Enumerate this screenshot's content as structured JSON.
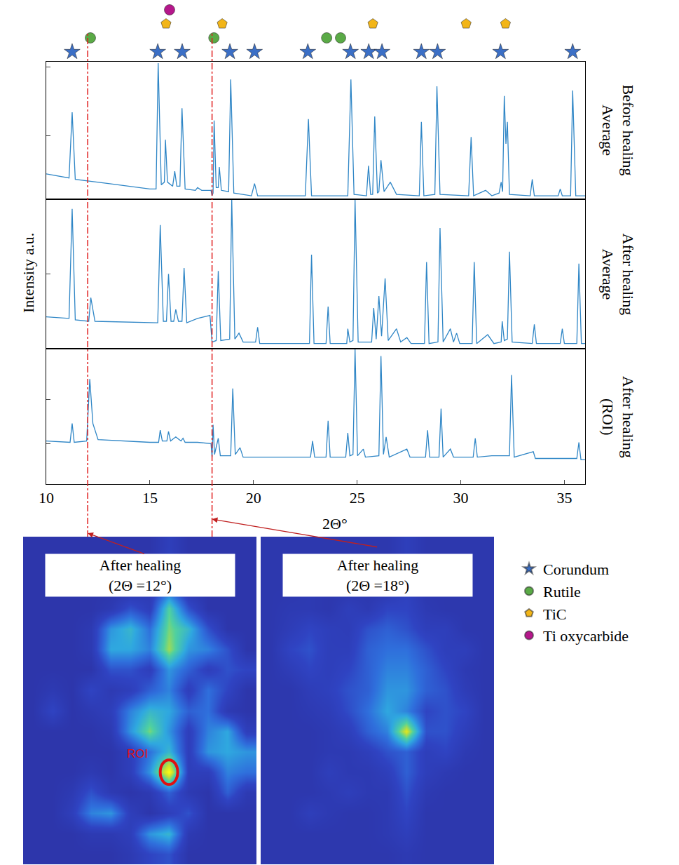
{
  "chart_data": [
    {
      "type": "line",
      "title": "Before healing Average",
      "tick_labels": false,
      "grid": false,
      "color": "#2f86c6",
      "xlim": [
        10,
        36
      ],
      "xticks": [
        10,
        15,
        20,
        25,
        30,
        35
      ],
      "ylim": [
        0,
        100
      ],
      "yticks": [
        46,
        96
      ],
      "x": [
        10,
        11.1,
        11.25,
        11.4,
        13,
        15,
        15.3,
        15.4,
        15.55,
        15.7,
        15.75,
        15.85,
        16.1,
        16.2,
        16.3,
        16.45,
        16.55,
        16.7,
        17.2,
        17.3,
        17.5,
        17.95,
        18.0,
        18.05,
        18.1,
        18.2,
        18.3,
        18.35,
        18.45,
        18.8,
        18.9,
        19.05,
        19.9,
        20.05,
        20.2,
        22.5,
        22.65,
        22.8,
        24.55,
        24.7,
        24.85,
        25.45,
        25.55,
        25.65,
        25.75,
        25.85,
        25.98,
        26.05,
        26.15,
        26.3,
        26.6,
        26.9,
        28.0,
        28.1,
        28.22,
        28.75,
        28.85,
        29.0,
        30.38,
        30.5,
        30.62,
        31.2,
        31.5,
        31.85,
        31.95,
        32.02,
        32.1,
        32.18,
        32.25,
        32.35,
        33.35,
        33.45,
        33.55,
        34.7,
        34.8,
        34.9,
        35.3,
        35.4,
        35.55,
        36
      ],
      "values": [
        18,
        15,
        63,
        14,
        11,
        7,
        7,
        99,
        10,
        12,
        43,
        12,
        9,
        20,
        9,
        9,
        66,
        7,
        6,
        8,
        6,
        6,
        2,
        4,
        57,
        8,
        8,
        23,
        6,
        5,
        87,
        4,
        2,
        11,
        2,
        2,
        58,
        2,
        2,
        87,
        3,
        2,
        24,
        3,
        3,
        60,
        4,
        5,
        28,
        5,
        12,
        3,
        2,
        56,
        2,
        3,
        82,
        3,
        2,
        45,
        2,
        6,
        2,
        4,
        12,
        5,
        75,
        40,
        56,
        3,
        2,
        14,
        2,
        2,
        7,
        2,
        2,
        79,
        2,
        2
      ]
    },
    {
      "type": "line",
      "title": "After healing Average",
      "ylabel": "Intensity a.u.",
      "tick_labels": false,
      "grid": false,
      "color": "#2f86c6",
      "xlim": [
        10,
        36
      ],
      "xticks": [
        10,
        15,
        20,
        25,
        30,
        35
      ],
      "ylim": [
        0,
        100
      ],
      "yticks": [
        50
      ],
      "x": [
        10,
        11.1,
        11.25,
        11.4,
        12.05,
        12.15,
        12.35,
        15,
        15.38,
        15.5,
        15.65,
        15.8,
        15.9,
        16.02,
        16.15,
        16.25,
        16.38,
        16.55,
        16.65,
        16.78,
        17.3,
        17.9,
        18.0,
        18.2,
        18.3,
        18.42,
        18.85,
        18.95,
        19.1,
        19.3,
        19.5,
        20.1,
        20.2,
        20.3,
        22.7,
        22.8,
        22.92,
        23.5,
        23.6,
        23.7,
        24.5,
        24.55,
        24.65,
        24.8,
        24.9,
        25.05,
        25.7,
        25.8,
        25.92,
        26.05,
        26.18,
        26.35,
        26.5,
        26.9,
        27.1,
        27.4,
        27.6,
        28.25,
        28.35,
        28.47,
        28.9,
        29.0,
        29.15,
        29.5,
        29.65,
        29.8,
        29.95,
        30.55,
        30.65,
        30.77,
        31.3,
        31.6,
        31.95,
        32.0,
        32.1,
        32.25,
        32.35,
        32.48,
        33.45,
        33.55,
        33.65,
        34.8,
        34.9,
        35.0,
        35.6,
        35.7,
        35.82,
        36
      ],
      "values": [
        21,
        20,
        94,
        19,
        18,
        34,
        18,
        17,
        17,
        83,
        18,
        18,
        50,
        18,
        18,
        26,
        18,
        18,
        54,
        17,
        20,
        22,
        4,
        5,
        52,
        5,
        6,
        100,
        6,
        10,
        4,
        4,
        14,
        3,
        3,
        63,
        3,
        3,
        28,
        3,
        3,
        13,
        4,
        5,
        100,
        4,
        4,
        27,
        6,
        35,
        8,
        47,
        5,
        13,
        4,
        7,
        3,
        3,
        58,
        3,
        4,
        81,
        4,
        13,
        4,
        10,
        3,
        3,
        58,
        3,
        9,
        3,
        4,
        18,
        5,
        6,
        65,
        4,
        3,
        16,
        3,
        3,
        13,
        3,
        3,
        57,
        3,
        3
      ]
    },
    {
      "type": "line",
      "title": "After healing (ROI)",
      "xlabel": "2Θ°",
      "tick_labels": "x",
      "grid": false,
      "color": "#2f86c6",
      "xlim": [
        10,
        36
      ],
      "xticks": [
        10,
        15,
        20,
        25,
        30,
        35
      ],
      "ylim": [
        0,
        100
      ],
      "yticks": [
        30,
        63
      ],
      "x": [
        10,
        11.15,
        11.25,
        11.35,
        11.95,
        12.1,
        12.25,
        12.5,
        15,
        15.42,
        15.5,
        15.6,
        15.82,
        15.9,
        16.0,
        16.25,
        16.5,
        16.6,
        16.7,
        17.3,
        17.95,
        18.0,
        18.05,
        18.12,
        18.3,
        18.4,
        18.9,
        19.0,
        19.12,
        19.35,
        19.5,
        22.75,
        22.85,
        22.95,
        23.5,
        23.6,
        23.7,
        24.45,
        24.55,
        24.65,
        24.8,
        24.9,
        25.02,
        25.3,
        25.4,
        26.05,
        26.15,
        26.27,
        26.4,
        26.55,
        27.4,
        27.55,
        28.3,
        28.4,
        28.5,
        28.95,
        29.05,
        29.15,
        29.5,
        29.65,
        30.6,
        30.7,
        30.8,
        31.5,
        32.35,
        32.45,
        32.58,
        33.5,
        33.6,
        35.6,
        35.7,
        35.8,
        36
      ],
      "values": [
        32,
        31,
        45,
        31,
        32,
        78,
        45,
        33,
        31,
        31,
        40,
        32,
        32,
        39,
        32,
        35,
        32,
        34,
        31,
        31,
        30,
        20,
        44,
        22,
        34,
        21,
        21,
        71,
        22,
        27,
        20,
        20,
        32,
        20,
        20,
        47,
        20,
        20,
        38,
        21,
        22,
        100,
        21,
        26,
        20,
        21,
        95,
        22,
        35,
        20,
        26,
        20,
        20,
        40,
        20,
        20,
        56,
        20,
        26,
        20,
        20,
        34,
        20,
        21,
        21,
        81,
        20,
        24,
        19,
        19,
        31,
        18,
        18
      ]
    },
    {
      "type": "scatter",
      "legend": "right",
      "series": [
        {
          "name": "Corundum",
          "color": "#3b6fc6",
          "marker": "star",
          "x": [
            11.25,
            15.38,
            16.56,
            18.86,
            20.05,
            22.62,
            24.68,
            25.56,
            26.2,
            28.1,
            28.88,
            31.92,
            35.4
          ]
        },
        {
          "name": "Rutile",
          "color": "#5aaa46",
          "marker": "circle",
          "x": [
            12.13,
            18.09,
            23.53,
            24.2
          ]
        },
        {
          "name": "TiC",
          "color": "#f2b518",
          "marker": "pentagon",
          "x": [
            15.78,
            18.49,
            25.76,
            30.26,
            32.16
          ]
        },
        {
          "name": "Ti oxycarbide",
          "color": "#b5178b",
          "marker": "circle",
          "x": [
            15.95
          ]
        }
      ]
    },
    {
      "type": "heatmap",
      "title": "After healing (2Θ =12°)",
      "two_theta": 12,
      "zlim": [
        0,
        1
      ],
      "roi": {
        "label": "ROI",
        "col": 7,
        "row": 11
      },
      "z": [
        [
          0.1,
          0.1,
          0.1,
          0.1,
          0.1,
          0.1,
          0.1,
          0.2,
          0.1,
          0.1,
          0.1,
          0.1
        ],
        [
          0.1,
          0.1,
          0.1,
          0.1,
          0.1,
          0.1,
          0.1,
          0.25,
          0.1,
          0.1,
          0.1,
          0.1
        ],
        [
          0.1,
          0.1,
          0.1,
          0.1,
          0.1,
          0.1,
          0.15,
          0.35,
          0.1,
          0.1,
          0.1,
          0.1
        ],
        [
          0.1,
          0.1,
          0.1,
          0.1,
          0.15,
          0.3,
          0.2,
          0.7,
          0.3,
          0.1,
          0.1,
          0.1
        ],
        [
          0.1,
          0.1,
          0.1,
          0.15,
          0.5,
          0.6,
          0.4,
          0.75,
          0.6,
          0.3,
          0.1,
          0.1
        ],
        [
          0.1,
          0.1,
          0.1,
          0.15,
          0.55,
          0.55,
          0.45,
          0.8,
          0.5,
          0.45,
          0.3,
          0.1
        ],
        [
          0.1,
          0.1,
          0.1,
          0.1,
          0.3,
          0.3,
          0.2,
          0.5,
          0.35,
          0.2,
          0.3,
          0.25
        ],
        [
          0.1,
          0.15,
          0.1,
          0.25,
          0.15,
          0.2,
          0.35,
          0.45,
          0.2,
          0.4,
          0.25,
          0.1
        ],
        [
          0.1,
          0.25,
          0.1,
          0.15,
          0.2,
          0.45,
          0.6,
          0.55,
          0.35,
          0.4,
          0.15,
          0.1
        ],
        [
          0.1,
          0.1,
          0.1,
          0.1,
          0.15,
          0.5,
          0.75,
          0.5,
          0.2,
          0.45,
          0.55,
          0.2
        ],
        [
          0.1,
          0.1,
          0.1,
          0.1,
          0.1,
          0.2,
          0.4,
          0.6,
          0.2,
          0.5,
          0.55,
          0.5
        ],
        [
          0.1,
          0.1,
          0.1,
          0.15,
          0.1,
          0.2,
          0.5,
          1,
          0.2,
          0.2,
          0.45,
          0.4
        ],
        [
          0.1,
          0.1,
          0.15,
          0.3,
          0.15,
          0.1,
          0.15,
          0.35,
          0.15,
          0.1,
          0.35,
          0.15
        ],
        [
          0.1,
          0.1,
          0.2,
          0.45,
          0.5,
          0.2,
          0.1,
          0.2,
          0.3,
          0.1,
          0.1,
          0.1
        ],
        [
          0.1,
          0.1,
          0.1,
          0.15,
          0.15,
          0.2,
          0.5,
          0.6,
          0.15,
          0.1,
          0.1,
          0.1
        ],
        [
          0.1,
          0.1,
          0.1,
          0.1,
          0.1,
          0.15,
          0.25,
          0.3,
          0.1,
          0.1,
          0.1,
          0.1
        ]
      ]
    },
    {
      "type": "heatmap",
      "title": "After healing (2Θ =18°)",
      "two_theta": 18,
      "zlim": [
        0,
        1
      ],
      "z": [
        [
          0.12,
          0.12,
          0.12,
          0.12,
          0.12,
          0.12,
          0.12,
          0.2,
          0.12,
          0.12,
          0.12,
          0.12
        ],
        [
          0.12,
          0.12,
          0.12,
          0.12,
          0.12,
          0.12,
          0.12,
          0.2,
          0.12,
          0.12,
          0.12,
          0.12
        ],
        [
          0.12,
          0.12,
          0.15,
          0.12,
          0.12,
          0.12,
          0.12,
          0.22,
          0.12,
          0.12,
          0.12,
          0.12
        ],
        [
          0.12,
          0.15,
          0.15,
          0.12,
          0.2,
          0.15,
          0.25,
          0.25,
          0.15,
          0.12,
          0.12,
          0.12
        ],
        [
          0.12,
          0.18,
          0.25,
          0.2,
          0.18,
          0.3,
          0.35,
          0.3,
          0.2,
          0.2,
          0.12,
          0.12
        ],
        [
          0.12,
          0.25,
          0.3,
          0.2,
          0.2,
          0.35,
          0.4,
          0.4,
          0.3,
          0.2,
          0.2,
          0.12
        ],
        [
          0.12,
          0.18,
          0.25,
          0.2,
          0.25,
          0.35,
          0.45,
          0.45,
          0.35,
          0.25,
          0.15,
          0.12
        ],
        [
          0.12,
          0.12,
          0.18,
          0.22,
          0.3,
          0.35,
          0.5,
          0.5,
          0.35,
          0.3,
          0.18,
          0.12
        ],
        [
          0.12,
          0.12,
          0.15,
          0.18,
          0.28,
          0.4,
          0.55,
          0.45,
          0.25,
          0.3,
          0.25,
          0.12
        ],
        [
          0.12,
          0.12,
          0.12,
          0.15,
          0.2,
          0.35,
          0.45,
          0.9,
          0.3,
          0.3,
          0.2,
          0.12
        ],
        [
          0.12,
          0.12,
          0.12,
          0.15,
          0.15,
          0.2,
          0.3,
          0.35,
          0.2,
          0.25,
          0.15,
          0.12
        ],
        [
          0.12,
          0.12,
          0.12,
          0.2,
          0.15,
          0.15,
          0.2,
          0.35,
          0.2,
          0.15,
          0.12,
          0.12
        ],
        [
          0.12,
          0.12,
          0.12,
          0.15,
          0.2,
          0.15,
          0.15,
          0.3,
          0.15,
          0.12,
          0.12,
          0.12
        ],
        [
          0.12,
          0.12,
          0.2,
          0.15,
          0.12,
          0.12,
          0.15,
          0.25,
          0.12,
          0.12,
          0.12,
          0.12
        ],
        [
          0.12,
          0.12,
          0.12,
          0.12,
          0.12,
          0.12,
          0.15,
          0.2,
          0.12,
          0.12,
          0.12,
          0.12
        ],
        [
          0.12,
          0.12,
          0.12,
          0.12,
          0.12,
          0.12,
          0.12,
          0.15,
          0.12,
          0.12,
          0.12,
          0.12
        ]
      ]
    }
  ]
}
